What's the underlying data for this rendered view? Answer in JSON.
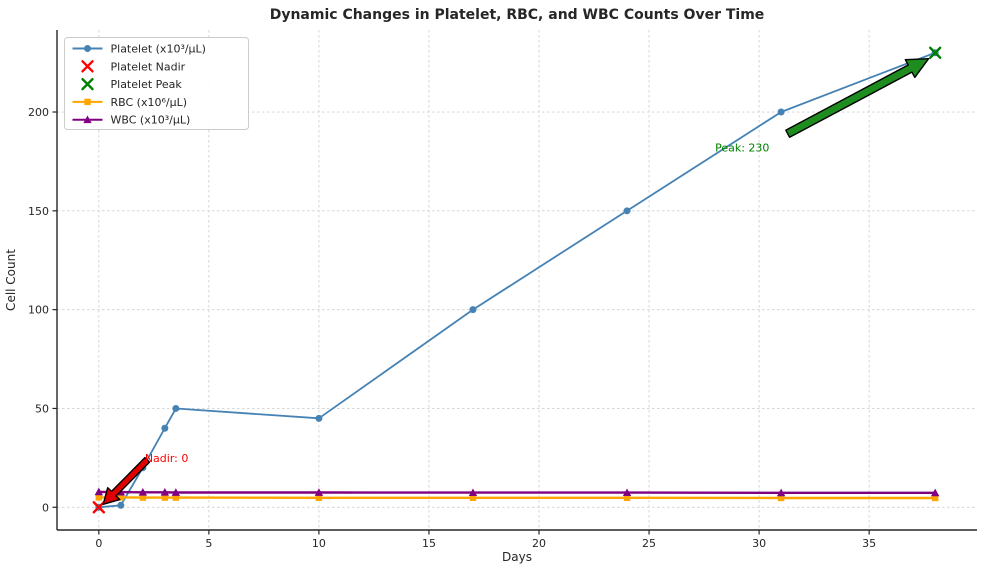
{
  "figure": {
    "background": "#ffffff",
    "plot_background": "#ffffff"
  },
  "chart_data": {
    "type": "line",
    "title": "Dynamic Changes in Platelet, RBC, and WBC Counts Over Time",
    "xlabel": "Days",
    "ylabel": "Cell Count",
    "xlim": [
      -1.9,
      39.9
    ],
    "ylim": [
      -11.5,
      241.5
    ],
    "x_ticks": [
      0,
      5,
      10,
      15,
      20,
      25,
      30,
      35
    ],
    "y_ticks": [
      0,
      50,
      100,
      150,
      200
    ],
    "grid": {
      "visible": true,
      "style": "dashed",
      "color": "#d0d0d0"
    },
    "x": [
      0,
      1,
      2,
      3,
      3.5,
      10,
      17,
      24,
      31,
      38
    ],
    "series": [
      {
        "id": "platelet",
        "name": "Platelet (x10³/μL)",
        "color": "#4682B4",
        "marker": "circle",
        "line_width": 1.8,
        "values": [
          0,
          1,
          20,
          40,
          50,
          45,
          100,
          150,
          200,
          230
        ]
      },
      {
        "id": "rbc",
        "name": "RBC (x10⁶/μL)",
        "color": "#FFA500",
        "marker": "square",
        "line_width": 2.4,
        "values": [
          5.0,
          5.0,
          4.9,
          4.9,
          4.9,
          4.8,
          4.8,
          4.8,
          4.7,
          4.7
        ]
      },
      {
        "id": "wbc",
        "name": "WBC (x10³/μL)",
        "color": "#800080",
        "marker": "triangle",
        "line_width": 2.4,
        "values": [
          7.8,
          7.7,
          7.6,
          7.6,
          7.5,
          7.5,
          7.4,
          7.4,
          7.3,
          7.3
        ]
      }
    ],
    "highlight_points": [
      {
        "id": "nadir",
        "name": "Platelet Nadir",
        "marker": "x",
        "color": "#FF0000",
        "x": 0,
        "y": 0
      },
      {
        "id": "peak",
        "name": "Platelet Peak",
        "marker": "x",
        "color": "#008000",
        "x": 38,
        "y": 230
      }
    ],
    "annotations": [
      {
        "id": "nadir",
        "text": "Nadir: 0",
        "color": "#FF0000",
        "text_x": 2.09,
        "text_y": 23,
        "arrow": {
          "from_x": 2.2,
          "from_y": 24,
          "to_x": 0.2,
          "to_y": 1.5,
          "fill": "#E00000",
          "outline": "#000000",
          "shaft_width": 6.5,
          "head_width": 17,
          "head_length": 15
        }
      },
      {
        "id": "peak",
        "text": "Peak: 230",
        "color": "#008000",
        "text_x": 28,
        "text_y": 180,
        "arrow": {
          "from_x": 31.3,
          "from_y": 189,
          "to_x": 37.7,
          "to_y": 227,
          "fill": "#1E8C1E",
          "outline": "#000000",
          "shaft_width": 8,
          "head_width": 20,
          "head_length": 21
        }
      }
    ],
    "legend": {
      "position": "upper-left",
      "entries": [
        {
          "label": "Platelet (x10³/μL)",
          "color": "#4682B4",
          "marker": "circle",
          "line": true
        },
        {
          "label": "Platelet Nadir",
          "color": "#FF0000",
          "marker": "x",
          "line": false
        },
        {
          "label": "Platelet Peak",
          "color": "#008000",
          "marker": "x",
          "line": false
        },
        {
          "label": "RBC (x10⁶/μL)",
          "color": "#FFA500",
          "marker": "square",
          "line": true
        },
        {
          "label": "WBC (x10³/μL)",
          "color": "#800080",
          "marker": "triangle",
          "line": true
        }
      ]
    },
    "axis_color": "#262626"
  }
}
